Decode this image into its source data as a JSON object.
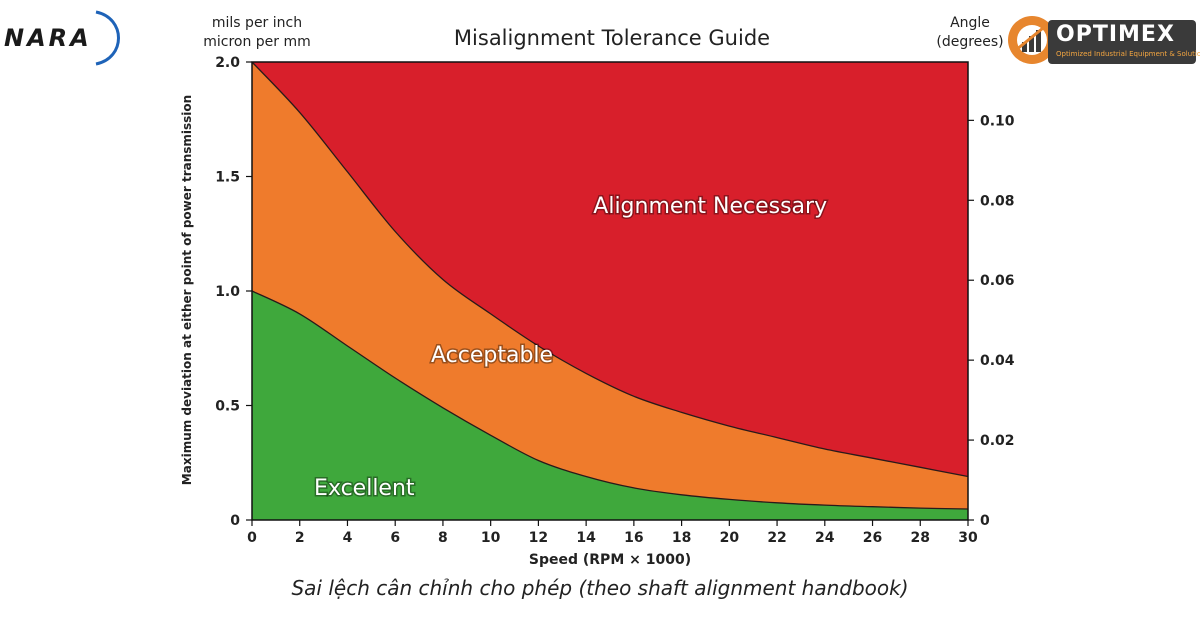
{
  "brand_left": {
    "name": "NARA"
  },
  "brand_right": {
    "name": "OPTIMEX",
    "tagline": "Optimized Industrial Equipment & Solutions"
  },
  "caption": "Sai lệch cân chỉnh cho phép (theo shaft alignment handbook)",
  "colors": {
    "excellent": "#3fa83c",
    "acceptable": "#ef7b2c",
    "necessary": "#d81f2b",
    "boundary": "#2a1a1a"
  },
  "chart_data": {
    "type": "area",
    "title": "Misalignment Tolerance Guide",
    "left_units": [
      "mils per inch",
      "micron per mm"
    ],
    "right_units": [
      "Angle",
      "(degrees)"
    ],
    "xlabel": "Speed (RPM × 1000)",
    "ylabel": "Maximum deviation at either point of power transmission",
    "xlim": [
      0,
      30
    ],
    "ylim": [
      0,
      2.0
    ],
    "x_ticks": [
      0,
      2,
      4,
      6,
      8,
      10,
      12,
      14,
      16,
      18,
      20,
      22,
      24,
      26,
      28,
      30
    ],
    "y_ticks": [
      0,
      0.5,
      1.0,
      1.5,
      2.0
    ],
    "y_tick_labels": [
      "0",
      "0.5",
      "1.0",
      "1.5",
      "2.0"
    ],
    "y2_lim": [
      0,
      0.1146
    ],
    "y2_ticks": [
      0,
      0.02,
      0.04,
      0.06,
      0.08,
      0.1
    ],
    "y2_tick_labels": [
      "0",
      "0.02",
      "0.04",
      "0.06",
      "0.08",
      "0.10"
    ],
    "series": [
      {
        "name": "Excellent",
        "x": [
          0,
          2,
          4,
          6,
          8,
          10,
          12,
          14,
          16,
          18,
          20,
          22,
          24,
          26,
          28,
          30
        ],
        "y": [
          1.0,
          0.9,
          0.76,
          0.62,
          0.49,
          0.37,
          0.26,
          0.19,
          0.14,
          0.11,
          0.09,
          0.075,
          0.065,
          0.058,
          0.052,
          0.048
        ]
      },
      {
        "name": "Acceptable",
        "x": [
          0,
          2,
          4,
          6,
          8,
          10,
          12,
          14,
          16,
          18,
          20,
          22,
          24,
          26,
          28,
          30
        ],
        "y": [
          2.0,
          1.78,
          1.52,
          1.26,
          1.05,
          0.9,
          0.76,
          0.64,
          0.54,
          0.47,
          0.41,
          0.36,
          0.31,
          0.27,
          0.23,
          0.19
        ]
      },
      {
        "name": "Alignment Necessary"
      }
    ],
    "zone_labels": [
      "Excellent",
      "Acceptable",
      "Alignment Necessary"
    ]
  }
}
